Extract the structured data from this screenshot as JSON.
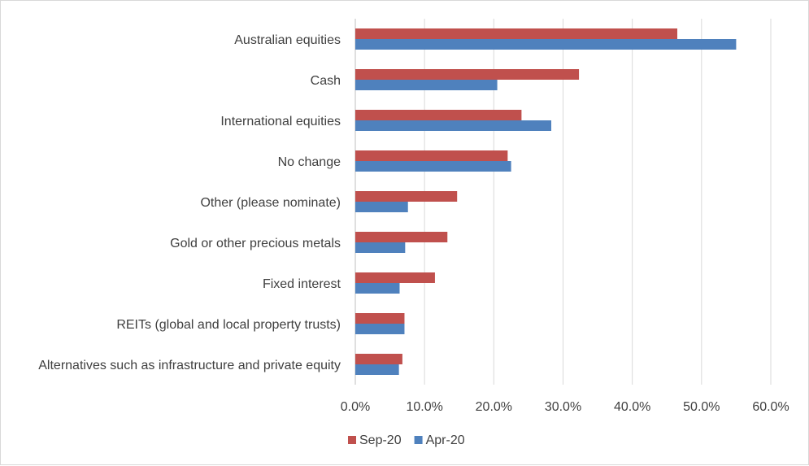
{
  "chart_data": {
    "type": "bar",
    "orientation": "horizontal",
    "categories": [
      "Australian equities",
      "Cash",
      "International equities",
      "No change",
      "Other (please nominate)",
      "Gold or other precious metals",
      "Fixed interest",
      "REITs (global and local property trusts)",
      "Alternatives such as infrastructure and private equity"
    ],
    "series": [
      {
        "name": "Sep-20",
        "color": "#c0504d",
        "values": [
          46.5,
          32.3,
          24.0,
          22.0,
          14.7,
          13.3,
          11.5,
          7.1,
          6.8
        ]
      },
      {
        "name": "Apr-20",
        "color": "#4f81bd",
        "values": [
          55.0,
          20.5,
          28.3,
          22.5,
          7.6,
          7.2,
          6.4,
          7.1,
          6.3
        ]
      }
    ],
    "xlim": [
      0,
      60
    ],
    "xticks": [
      "0.0%",
      "10.0%",
      "20.0%",
      "30.0%",
      "40.0%",
      "50.0%",
      "60.0%"
    ],
    "grid": "vertical",
    "legend": "bottom"
  }
}
